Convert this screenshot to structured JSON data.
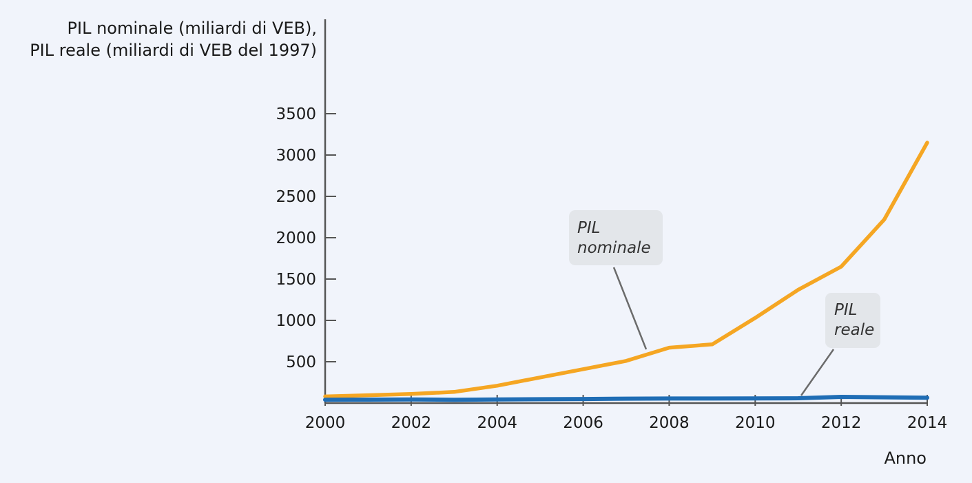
{
  "chart_data": {
    "type": "line",
    "ylabel": [
      "PIL nominale (miliardi di VEB),",
      "PIL reale (miliardi di VEB del 1997)"
    ],
    "xlabel": "Anno",
    "xlim": [
      2000,
      2014
    ],
    "ylim": [
      0,
      3500
    ],
    "x_ticks": [
      2000,
      2002,
      2004,
      2006,
      2008,
      2010,
      2012,
      2014
    ],
    "y_ticks": [
      500,
      1000,
      1500,
      2000,
      2500,
      3000,
      3500
    ],
    "grid": false,
    "series": [
      {
        "name": "PIL nominale",
        "color": "#f5a623",
        "x": [
          2000,
          2001,
          2002,
          2003,
          2004,
          2005,
          2006,
          2007,
          2008,
          2009,
          2010,
          2011,
          2012,
          2013,
          2014
        ],
        "y": [
          80,
          95,
          110,
          135,
          210,
          310,
          410,
          510,
          670,
          710,
          1030,
          1370,
          1650,
          2220,
          3150
        ]
      },
      {
        "name": "PIL reale",
        "color": "#1f6db5",
        "x": [
          2000,
          2001,
          2002,
          2003,
          2004,
          2005,
          2006,
          2007,
          2008,
          2009,
          2010,
          2011,
          2012,
          2013,
          2014
        ],
        "y": [
          41,
          42,
          43,
          40,
          43,
          47,
          49,
          53,
          55,
          55,
          56,
          58,
          75,
          70,
          65
        ]
      }
    ],
    "annotations": [
      {
        "lines": [
          "PIL",
          "nominale"
        ],
        "series": "PIL nominale"
      },
      {
        "lines": [
          "PIL",
          "reale"
        ],
        "series": "PIL reale"
      }
    ],
    "callout_color": "#e3e6ea",
    "axis_color": "#555555"
  }
}
